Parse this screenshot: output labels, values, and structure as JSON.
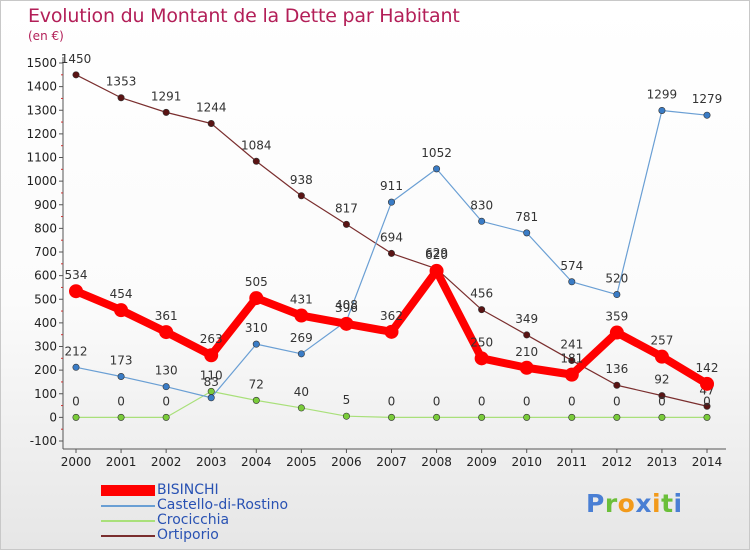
{
  "title": "Evolution du Montant de la Dette par Habitant",
  "subtitle": "(en €)",
  "chart_data": {
    "type": "line",
    "x": [
      "2000",
      "2001",
      "2002",
      "2003",
      "2004",
      "2005",
      "2006",
      "2007",
      "2008",
      "2009",
      "2010",
      "2011",
      "2012",
      "2013",
      "2014"
    ],
    "ylim": [
      -100,
      1500
    ],
    "yticks": [
      "-100",
      "0",
      "100",
      "200",
      "300",
      "400",
      "500",
      "600",
      "700",
      "800",
      "900",
      "1000",
      "1100",
      "1200",
      "1300",
      "1400",
      "1500"
    ],
    "grid": false,
    "legend_position": "bottom-left",
    "series": [
      {
        "name": "Ortiporio",
        "color": "#7a2e2e",
        "marker": "#5a1414",
        "values": [
          1450,
          1353,
          1291,
          1244,
          1084,
          938,
          817,
          694,
          629,
          456,
          349,
          241,
          136,
          92,
          47
        ]
      },
      {
        "name": "Crocicchia",
        "color": "#a9e07a",
        "marker": "#7acc3a",
        "values": [
          0,
          0,
          0,
          110,
          72,
          40,
          5,
          0,
          0,
          0,
          0,
          0,
          0,
          0,
          0
        ]
      },
      {
        "name": "Castello-di-Rostino",
        "color": "#6a9fd4",
        "marker": "#3a7cc6",
        "values": [
          212,
          173,
          130,
          83,
          310,
          269,
          408,
          911,
          1052,
          830,
          781,
          574,
          520,
          1299,
          1279
        ]
      },
      {
        "name": "BISINCHI",
        "color": "#ff0000",
        "marker": "#ff0000",
        "values": [
          534,
          454,
          361,
          263,
          505,
          431,
          396,
          362,
          620,
          250,
          210,
          181,
          359,
          257,
          142
        ]
      }
    ]
  },
  "legend": [
    {
      "label": "BISINCHI",
      "color": "#ff0000",
      "thick": true
    },
    {
      "label": "Castello-di-Rostino",
      "color": "#6a9fd4",
      "thick": false
    },
    {
      "label": "Crocicchia",
      "color": "#a9e07a",
      "thick": false
    },
    {
      "label": "Ortiporio",
      "color": "#7a2e2e",
      "thick": false
    }
  ],
  "logo": {
    "letters": [
      "P",
      "r",
      "o",
      "x",
      "i",
      "t",
      "i"
    ],
    "colors": [
      "#4a7fd4",
      "#6bbf3a",
      "#f29a1a",
      "#4a7fd4",
      "#f29a1a",
      "#6bbf3a",
      "#4a7fd4"
    ]
  }
}
